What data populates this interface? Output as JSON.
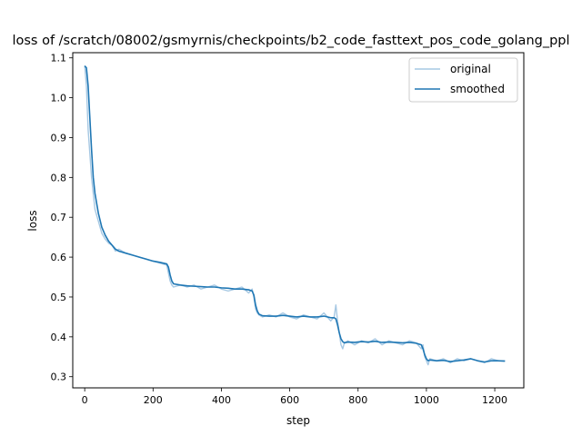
{
  "chart_data": {
    "type": "line",
    "title": "loss of /scratch/08002/gsmyrnis/checkpoints/b2_code_fasttext_pos_code_golang_ppl",
    "xlabel": "step",
    "ylabel": "loss",
    "xlim": [
      -35,
      1285
    ],
    "ylim": [
      0.272,
      1.113
    ],
    "xticks": [
      0,
      200,
      400,
      600,
      800,
      1000,
      1200
    ],
    "yticks": [
      0.3,
      0.4,
      0.5,
      0.6,
      0.7,
      0.8,
      0.9,
      1.0,
      1.1
    ],
    "grid": false,
    "legend": "top-right",
    "series": [
      {
        "name": "original",
        "color": "#a6c8e3",
        "x": [
          0,
          5,
          10,
          15,
          20,
          25,
          30,
          40,
          50,
          60,
          70,
          80,
          90,
          100,
          120,
          140,
          160,
          180,
          200,
          220,
          240,
          245,
          250,
          255,
          260,
          280,
          300,
          320,
          340,
          360,
          380,
          400,
          420,
          440,
          460,
          480,
          490,
          495,
          500,
          505,
          510,
          520,
          540,
          560,
          580,
          600,
          620,
          640,
          660,
          680,
          700,
          720,
          730,
          735,
          740,
          745,
          750,
          755,
          760,
          770,
          790,
          810,
          830,
          850,
          870,
          890,
          910,
          930,
          950,
          970,
          985,
          990,
          995,
          1000,
          1005,
          1010,
          1030,
          1050,
          1070,
          1090,
          1110,
          1130,
          1150,
          1170,
          1190,
          1210,
          1230
        ],
        "values": [
          1.08,
          1.03,
          0.92,
          0.86,
          0.8,
          0.76,
          0.72,
          0.69,
          0.66,
          0.645,
          0.635,
          0.63,
          0.615,
          0.62,
          0.61,
          0.605,
          0.6,
          0.595,
          0.59,
          0.585,
          0.58,
          0.56,
          0.54,
          0.53,
          0.525,
          0.53,
          0.525,
          0.53,
          0.52,
          0.525,
          0.53,
          0.52,
          0.515,
          0.52,
          0.525,
          0.51,
          0.52,
          0.5,
          0.47,
          0.46,
          0.455,
          0.45,
          0.455,
          0.45,
          0.46,
          0.45,
          0.445,
          0.455,
          0.45,
          0.445,
          0.46,
          0.44,
          0.45,
          0.48,
          0.44,
          0.41,
          0.38,
          0.37,
          0.385,
          0.39,
          0.38,
          0.39,
          0.385,
          0.395,
          0.38,
          0.39,
          0.385,
          0.38,
          0.39,
          0.385,
          0.37,
          0.38,
          0.35,
          0.34,
          0.33,
          0.345,
          0.34,
          0.345,
          0.335,
          0.345,
          0.34,
          0.345,
          0.34,
          0.335,
          0.345,
          0.34,
          0.34
        ]
      },
      {
        "name": "smoothed",
        "color": "#1f77b4",
        "x": [
          0,
          5,
          10,
          15,
          20,
          25,
          30,
          40,
          50,
          60,
          70,
          80,
          90,
          100,
          120,
          140,
          160,
          180,
          200,
          220,
          240,
          245,
          250,
          255,
          260,
          280,
          300,
          320,
          340,
          360,
          380,
          400,
          420,
          440,
          460,
          480,
          490,
          495,
          500,
          505,
          510,
          520,
          540,
          560,
          580,
          600,
          620,
          640,
          660,
          680,
          700,
          720,
          730,
          735,
          740,
          745,
          750,
          755,
          760,
          770,
          790,
          810,
          830,
          850,
          870,
          890,
          910,
          930,
          950,
          970,
          985,
          990,
          995,
          1000,
          1005,
          1010,
          1030,
          1050,
          1070,
          1090,
          1110,
          1130,
          1150,
          1170,
          1190,
          1210,
          1230
        ],
        "values": [
          1.08,
          1.075,
          1.03,
          0.95,
          0.87,
          0.8,
          0.76,
          0.71,
          0.675,
          0.655,
          0.64,
          0.63,
          0.62,
          0.615,
          0.61,
          0.605,
          0.6,
          0.595,
          0.59,
          0.587,
          0.583,
          0.575,
          0.555,
          0.54,
          0.533,
          0.53,
          0.528,
          0.527,
          0.526,
          0.525,
          0.525,
          0.523,
          0.522,
          0.52,
          0.52,
          0.518,
          0.515,
          0.505,
          0.48,
          0.465,
          0.457,
          0.453,
          0.452,
          0.452,
          0.454,
          0.452,
          0.45,
          0.452,
          0.45,
          0.45,
          0.452,
          0.448,
          0.448,
          0.445,
          0.43,
          0.41,
          0.395,
          0.388,
          0.385,
          0.387,
          0.386,
          0.388,
          0.387,
          0.389,
          0.386,
          0.387,
          0.386,
          0.385,
          0.386,
          0.384,
          0.38,
          0.37,
          0.355,
          0.345,
          0.34,
          0.342,
          0.34,
          0.341,
          0.338,
          0.34,
          0.342,
          0.345,
          0.34,
          0.337,
          0.34,
          0.34,
          0.339
        ]
      }
    ]
  }
}
